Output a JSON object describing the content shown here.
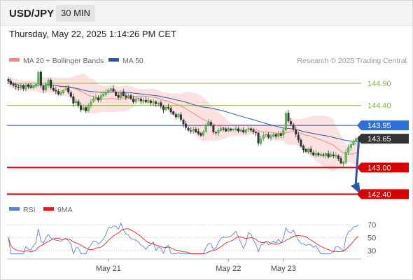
{
  "header": {
    "symbol": "USD/JPY",
    "timeframe": "30 MIN",
    "datetime": "Thursday, May 22, 2025 1:14:26 PM CET"
  },
  "legend": {
    "items": [
      {
        "label": "MA 20 + Bollinger Bands",
        "color": "#f08a8a"
      },
      {
        "label": "MA 50",
        "color": "#2f5a9e"
      }
    ],
    "credit": "Research © 2025 Trading Central"
  },
  "chart_data": {
    "type": "candlestick",
    "ylim": [
      142.2,
      145.2
    ],
    "levels": [
      {
        "value": 144.9,
        "label": "144.90",
        "color": "#7fb241",
        "style": "thin",
        "label_style": "text"
      },
      {
        "value": 144.4,
        "label": "144.40",
        "color": "#7fb241",
        "style": "thin",
        "label_style": "text"
      },
      {
        "value": 143.95,
        "label": "143.95",
        "color": "#2e6fd9",
        "style": "medium",
        "label_style": "badge"
      },
      {
        "value": 143.65,
        "label": "143.65",
        "color": "#333333",
        "style": "dotted",
        "label_style": "badge"
      },
      {
        "value": 143.0,
        "label": "143.00",
        "color": "#d80000",
        "style": "thick",
        "label_style": "badge"
      },
      {
        "value": 142.4,
        "label": "142.40",
        "color": "#d80000",
        "style": "thick",
        "label_style": "badge"
      }
    ],
    "forecast_arrow": {
      "from": 143.65,
      "to": 142.4,
      "color": "#2a5aa8"
    },
    "close": [
      144.95,
      144.88,
      144.85,
      144.82,
      144.8,
      144.84,
      144.78,
      144.86,
      144.82,
      144.8,
      144.84,
      144.88,
      145.15,
      144.85,
      144.75,
      144.88,
      144.97,
      144.8,
      144.74,
      144.72,
      144.66,
      144.7,
      144.74,
      144.78,
      144.7,
      144.6,
      144.45,
      144.5,
      144.4,
      144.3,
      144.35,
      144.28,
      144.4,
      144.48,
      144.55,
      144.58,
      144.52,
      144.62,
      144.66,
      144.7,
      144.74,
      144.78,
      144.72,
      144.62,
      144.58,
      144.7,
      144.62,
      144.58,
      144.62,
      144.55,
      144.48,
      144.55,
      144.56,
      144.5,
      144.52,
      144.48,
      144.52,
      144.46,
      144.48,
      144.44,
      144.45,
      144.38,
      144.3,
      144.36,
      144.34,
      144.25,
      144.2,
      144.14,
      144.2,
      144.08,
      143.98,
      143.9,
      143.84,
      143.82,
      143.86,
      143.8,
      143.76,
      143.72,
      143.8,
      143.95,
      144.02,
      143.96,
      143.8,
      143.78,
      143.84,
      143.88,
      143.86,
      143.82,
      143.88,
      143.84,
      143.86,
      143.88,
      143.82,
      143.84,
      143.8,
      143.85,
      143.88,
      143.84,
      143.8,
      143.78,
      143.55,
      143.65,
      143.72,
      143.75,
      143.68,
      143.72,
      143.74,
      143.7,
      143.76,
      143.72,
      143.85,
      144.22,
      144.05,
      143.98,
      143.86,
      143.75,
      143.62,
      143.48,
      143.4,
      143.36,
      143.42,
      143.35,
      143.28,
      143.32,
      143.28,
      143.3,
      143.27,
      143.32,
      143.24,
      143.3,
      143.26,
      143.28,
      143.2,
      143.1,
      143.12,
      143.35,
      143.45,
      143.52,
      143.6,
      143.65,
      143.65
    ],
    "x_ticks": [
      {
        "label": "May 21",
        "index": 40
      },
      {
        "label": "May 22",
        "index": 88
      },
      {
        "label": "May 23",
        "index": 110
      }
    ]
  },
  "rsi": {
    "legend": [
      {
        "label": "RSI",
        "color": "#5b84d6"
      },
      {
        "label": "9MA",
        "color": "#e02020"
      }
    ],
    "levels": [
      70,
      50,
      30
    ],
    "level_labels": [
      "70",
      "50",
      "30"
    ]
  }
}
